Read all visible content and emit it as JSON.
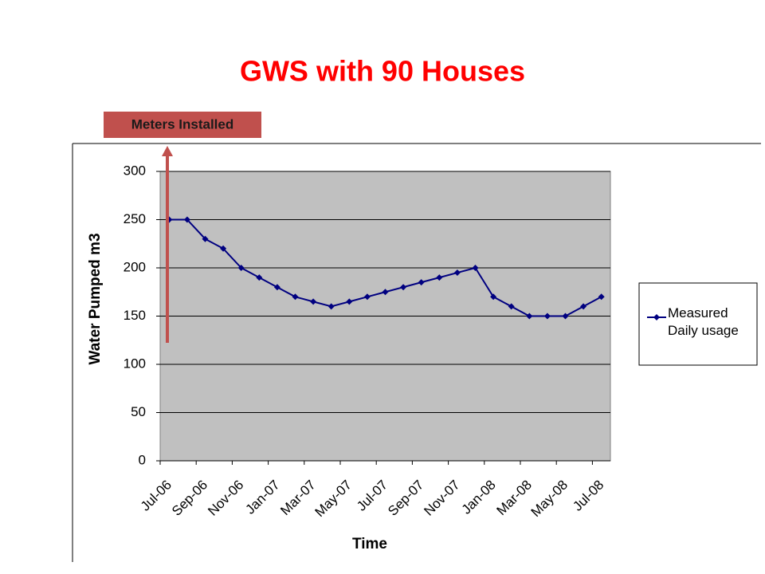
{
  "chart_data": {
    "type": "line",
    "title": "GWS with 90 Houses",
    "annotation": "Meters Installed",
    "x_label": "Time",
    "y_label": "Water Pumped m3",
    "categories": [
      "Jul-06",
      null,
      "Sep-06",
      null,
      "Nov-06",
      null,
      "Jan-07",
      null,
      "Mar-07",
      null,
      "May-07",
      null,
      "Jul-07",
      null,
      "Sep-07",
      null,
      "Nov-07",
      null,
      "Jan-08",
      null,
      "Mar-08",
      null,
      "May-08",
      null,
      "Jul-08"
    ],
    "series": [
      {
        "name": "Measured Daily usage",
        "color": "#000080",
        "values": [
          250,
          250,
          230,
          220,
          200,
          190,
          180,
          170,
          165,
          160,
          165,
          170,
          175,
          180,
          185,
          190,
          195,
          200,
          170,
          160,
          150,
          150,
          150,
          160,
          170
        ]
      }
    ],
    "ylim": [
      0,
      300
    ],
    "yticks": [
      0,
      50,
      100,
      150,
      200,
      250,
      300
    ],
    "grid": true,
    "legend": "right"
  }
}
